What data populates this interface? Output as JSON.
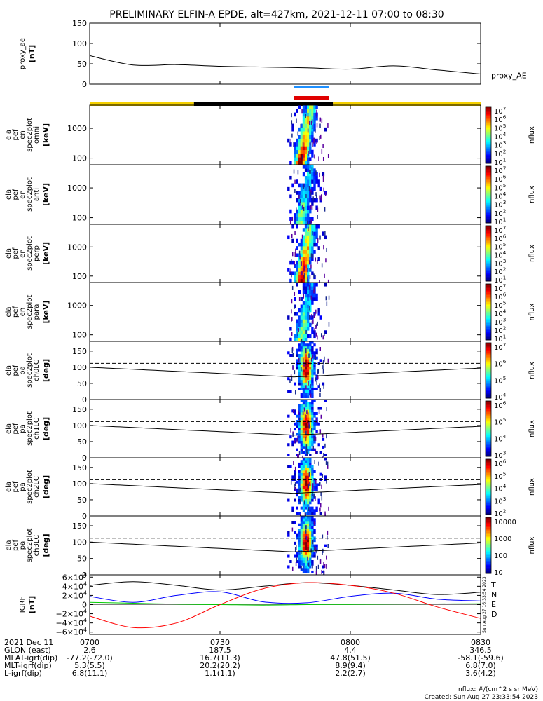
{
  "title": "PRELIMINARY ELFIN-A EPDE, alt=427km, 2021-12-11 07:00 to 08:30",
  "colors": {
    "ae_bar": "#1e90ff",
    "ram_bar": "#e00000",
    "sun_bar": "#f5d000",
    "eclipse_bar": "#000000",
    "igrf_T": "#000000",
    "igrf_N": "#0000ff",
    "igrf_E": "#00cc00",
    "igrf_D": "#ff0000"
  },
  "panels": [
    {
      "key": "proxy_ae",
      "ylabel": [
        "proxy_ae",
        "[nT]"
      ],
      "right_label": "proxy_AE"
    },
    {
      "key": "omni",
      "ylabel": [
        "ela",
        "pef",
        "en",
        "spec2plot",
        "omni",
        "[keV]"
      ],
      "zlabel": "nflux"
    },
    {
      "key": "anti",
      "ylabel": [
        "ela",
        "pef",
        "en",
        "spec2plot",
        "anti",
        "[keV]"
      ],
      "zlabel": "nflux"
    },
    {
      "key": "perp",
      "ylabel": [
        "ela",
        "pef",
        "en",
        "spec2plot",
        "perp",
        "[keV]"
      ],
      "zlabel": "nflux"
    },
    {
      "key": "para",
      "ylabel": [
        "ela",
        "pef",
        "en",
        "spec2plot",
        "para",
        "[keV]"
      ],
      "zlabel": "nflux"
    },
    {
      "key": "ch0",
      "ylabel": [
        "ela",
        "pef",
        "pa",
        "spec2plot",
        "ch0LC",
        "[deg]"
      ],
      "zlabel": "nflux"
    },
    {
      "key": "ch1",
      "ylabel": [
        "ela",
        "pef",
        "pa",
        "spec2plot",
        "ch1LC",
        "[deg]"
      ],
      "zlabel": "nflux"
    },
    {
      "key": "ch2",
      "ylabel": [
        "ela",
        "pef",
        "pa",
        "spec2plot",
        "ch2LC",
        "[deg]"
      ],
      "zlabel": "nflux"
    },
    {
      "key": "ch3",
      "ylabel": [
        "ela",
        "pef",
        "pa",
        "spec2plot",
        "ch3LC",
        "[deg]"
      ],
      "zlabel": "nflux"
    },
    {
      "key": "igrf",
      "ylabel": [
        "IGRF",
        "[nT]"
      ]
    }
  ],
  "chart_data": [
    {
      "panel": "proxy_ae",
      "type": "line",
      "ylim": [
        0,
        150
      ],
      "yticks": [
        "150",
        "100",
        "50",
        "0"
      ],
      "x": [
        "0700",
        "0710",
        "0720",
        "0730",
        "0740",
        "0750",
        "0800",
        "0810",
        "0820",
        "0830"
      ],
      "values": [
        70,
        47,
        48,
        44,
        42,
        40,
        37,
        45,
        35,
        25
      ]
    },
    {
      "panel": "omni",
      "type": "heatmap",
      "yscale": "log",
      "ylim": [
        60,
        6000
      ],
      "yticks": [
        "1000",
        "100"
      ],
      "cbar_ticks": [
        "10^7",
        "10^6",
        "10^5",
        "10^4",
        "10^3",
        "10^2",
        "10^1"
      ]
    },
    {
      "panel": "anti",
      "type": "heatmap",
      "yscale": "log",
      "ylim": [
        60,
        6000
      ],
      "yticks": [
        "1000",
        "100"
      ],
      "cbar_ticks": [
        "10^7",
        "10^6",
        "10^5",
        "10^4",
        "10^3",
        "10^2",
        "10^1"
      ]
    },
    {
      "panel": "perp",
      "type": "heatmap",
      "yscale": "log",
      "ylim": [
        60,
        6000
      ],
      "yticks": [
        "1000",
        "100"
      ],
      "cbar_ticks": [
        "10^7",
        "10^6",
        "10^5",
        "10^4",
        "10^3",
        "10^2",
        "10^1"
      ]
    },
    {
      "panel": "para",
      "type": "heatmap",
      "yscale": "log",
      "ylim": [
        60,
        6000
      ],
      "yticks": [
        "1000",
        "100"
      ],
      "cbar_ticks": [
        "10^7",
        "10^6",
        "10^5",
        "10^4",
        "10^3",
        "10^2",
        "10^1"
      ]
    },
    {
      "panel": "ch0",
      "type": "heatmap",
      "ylim": [
        0,
        180
      ],
      "yticks": [
        "150",
        "100",
        "50",
        "0"
      ],
      "cbar_ticks": [
        "10^7",
        "10^6",
        "10^5",
        "10^4"
      ]
    },
    {
      "panel": "ch1",
      "type": "heatmap",
      "ylim": [
        0,
        180
      ],
      "yticks": [
        "150",
        "100",
        "50",
        "0"
      ],
      "cbar_ticks": [
        "10^6",
        "10^5",
        "10^4",
        "10^3"
      ]
    },
    {
      "panel": "ch2",
      "type": "heatmap",
      "ylim": [
        0,
        180
      ],
      "yticks": [
        "150",
        "100",
        "50",
        "0"
      ],
      "cbar_ticks": [
        "10^6",
        "10^5",
        "10^4",
        "10^3",
        "10^2"
      ]
    },
    {
      "panel": "ch3",
      "type": "heatmap",
      "ylim": [
        0,
        180
      ],
      "yticks": [
        "150",
        "100",
        "50",
        "0"
      ],
      "cbar_ticks": [
        "10000",
        "1000",
        "100",
        "10"
      ]
    },
    {
      "panel": "igrf",
      "type": "line",
      "ylim": [
        -65000,
        65000
      ],
      "yticks": [
        "6×10^4",
        "4×10^4",
        "2×10^4",
        "0",
        "−2×10^4",
        "−4×10^4",
        "−6×10^4"
      ],
      "x": [
        "0700",
        "0710",
        "0720",
        "0730",
        "0740",
        "0750",
        "0800",
        "0810",
        "0820",
        "0830"
      ],
      "series": [
        {
          "name": "T",
          "values": [
            42000,
            50000,
            42000,
            32000,
            40000,
            48000,
            42000,
            32000,
            22000,
            27000
          ]
        },
        {
          "name": "N",
          "values": [
            18000,
            5000,
            20000,
            28000,
            6000,
            4000,
            18000,
            25000,
            12000,
            8000
          ]
        },
        {
          "name": "E",
          "values": [
            5000,
            3000,
            1000,
            0,
            -1000,
            0,
            500,
            1000,
            1500,
            2000
          ]
        },
        {
          "name": "D",
          "values": [
            -25000,
            -50000,
            -40000,
            0,
            35000,
            48000,
            42000,
            25000,
            -5000,
            -30000
          ]
        }
      ]
    }
  ],
  "x_ticks": [
    "0700",
    "0730",
    "0800",
    "0830"
  ],
  "orbit": {
    "labels": [
      "2021 Dec 11",
      "GLON (east)",
      "MLAT-igrf(dip)",
      "MLT-igrf(dip)",
      "L-igrf(dip)"
    ],
    "values": [
      [
        "2.6",
        "187.5",
        "4.4",
        "346.5"
      ],
      [
        "-77.2(-72.0)",
        "16.7(11.3)",
        "47.8(51.5)",
        "-58.1(-59.6)"
      ],
      [
        "5.3(5.5)",
        "20.2(20.2)",
        "8.9(9.4)",
        "6.8(7.0)"
      ],
      [
        "6.8(11.1)",
        "1.1(1.1)",
        "2.2(2.7)",
        "3.6(4.2)"
      ]
    ]
  },
  "footer": {
    "units": "nflux: #/(cm^2 s sr MeV)",
    "created": "Created: Sun Aug 27 23:33:54 2023",
    "stamp": "Sun Aug 27 16:33:54 2023"
  }
}
